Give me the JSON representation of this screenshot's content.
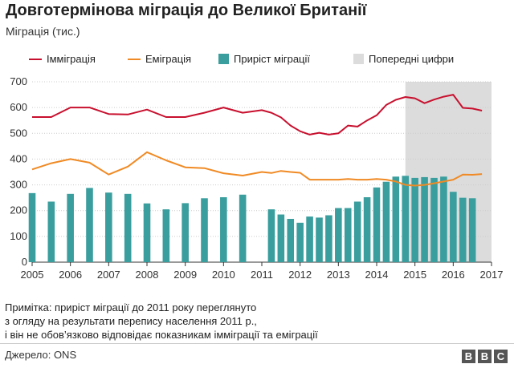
{
  "title": "Довготермінова міграція до Великої Британії",
  "subtitle": "Міграція (тис.)",
  "legend": {
    "immigration": "Імміграція",
    "emigration": "Еміграція",
    "net": "Приріст міграції",
    "provisional": "Попередні цифри"
  },
  "colors": {
    "immigration": "#c8102e",
    "emigration": "#f08a24",
    "net": "#3a9e9e",
    "provisional": "#dcdcdc",
    "grid": "#cccccc"
  },
  "chart_data": {
    "type": "bar",
    "ylim": [
      0,
      700
    ],
    "yticks": [
      0,
      100,
      200,
      300,
      400,
      500,
      600,
      700
    ],
    "xlim": [
      2005,
      2017
    ],
    "xticks": [
      "2005",
      "2006",
      "2007",
      "2008",
      "2009",
      "2010",
      "2011",
      "2012",
      "2013",
      "2014",
      "2015",
      "2016",
      "2017"
    ],
    "provisional_from": 2014.75,
    "series": [
      {
        "name": "Імміграція",
        "type": "line",
        "points": [
          [
            2005.0,
            563
          ],
          [
            2005.5,
            563
          ],
          [
            2006.0,
            600
          ],
          [
            2006.5,
            600
          ],
          [
            2007.0,
            575
          ],
          [
            2007.5,
            573
          ],
          [
            2008.0,
            592
          ],
          [
            2008.5,
            563
          ],
          [
            2009.0,
            563
          ],
          [
            2009.5,
            580
          ],
          [
            2010.0,
            600
          ],
          [
            2010.5,
            580
          ],
          [
            2011.0,
            590
          ],
          [
            2011.25,
            580
          ],
          [
            2011.5,
            562
          ],
          [
            2011.75,
            530
          ],
          [
            2012.0,
            508
          ],
          [
            2012.25,
            495
          ],
          [
            2012.5,
            502
          ],
          [
            2012.75,
            495
          ],
          [
            2013.0,
            500
          ],
          [
            2013.25,
            530
          ],
          [
            2013.5,
            526
          ],
          [
            2013.75,
            550
          ],
          [
            2014.0,
            570
          ],
          [
            2014.25,
            610
          ],
          [
            2014.5,
            630
          ],
          [
            2014.75,
            641
          ],
          [
            2015.0,
            636
          ],
          [
            2015.25,
            617
          ],
          [
            2015.5,
            631
          ],
          [
            2015.75,
            642
          ],
          [
            2016.0,
            650
          ],
          [
            2016.25,
            599
          ],
          [
            2016.5,
            596
          ],
          [
            2016.75,
            588
          ]
        ]
      },
      {
        "name": "Еміграція",
        "type": "line",
        "points": [
          [
            2005.0,
            360
          ],
          [
            2005.5,
            384
          ],
          [
            2006.0,
            400
          ],
          [
            2006.5,
            386
          ],
          [
            2007.0,
            340
          ],
          [
            2007.5,
            371
          ],
          [
            2008.0,
            427
          ],
          [
            2008.5,
            395
          ],
          [
            2009.0,
            368
          ],
          [
            2009.5,
            365
          ],
          [
            2010.0,
            345
          ],
          [
            2010.5,
            336
          ],
          [
            2011.0,
            350
          ],
          [
            2011.25,
            346
          ],
          [
            2011.5,
            354
          ],
          [
            2011.75,
            350
          ],
          [
            2012.0,
            347
          ],
          [
            2012.25,
            320
          ],
          [
            2012.5,
            320
          ],
          [
            2012.75,
            320
          ],
          [
            2013.0,
            320
          ],
          [
            2013.25,
            323
          ],
          [
            2013.5,
            320
          ],
          [
            2013.75,
            320
          ],
          [
            2014.0,
            323
          ],
          [
            2014.25,
            320
          ],
          [
            2014.5,
            313
          ],
          [
            2014.75,
            300
          ],
          [
            2015.0,
            297
          ],
          [
            2015.25,
            300
          ],
          [
            2015.5,
            306
          ],
          [
            2015.75,
            313
          ],
          [
            2016.0,
            320
          ],
          [
            2016.25,
            340
          ],
          [
            2016.5,
            339
          ],
          [
            2016.75,
            342
          ]
        ]
      },
      {
        "name": "Приріст міграції",
        "type": "bar",
        "points": [
          [
            2005.0,
            268
          ],
          [
            2005.5,
            235
          ],
          [
            2006.0,
            265
          ],
          [
            2006.5,
            288
          ],
          [
            2007.0,
            270
          ],
          [
            2007.5,
            265
          ],
          [
            2008.0,
            228
          ],
          [
            2008.5,
            205
          ],
          [
            2009.0,
            229
          ],
          [
            2009.5,
            248
          ],
          [
            2010.0,
            252
          ],
          [
            2010.5,
            262
          ],
          [
            2011.25,
            205
          ],
          [
            2011.5,
            185
          ],
          [
            2011.75,
            168
          ],
          [
            2012.0,
            153
          ],
          [
            2012.25,
            177
          ],
          [
            2012.5,
            173
          ],
          [
            2012.75,
            182
          ],
          [
            2013.0,
            210
          ],
          [
            2013.25,
            210
          ],
          [
            2013.5,
            235
          ],
          [
            2013.75,
            252
          ],
          [
            2014.0,
            290
          ],
          [
            2014.25,
            312
          ],
          [
            2014.5,
            332
          ],
          [
            2014.75,
            335
          ],
          [
            2015.0,
            327
          ],
          [
            2015.25,
            330
          ],
          [
            2015.5,
            327
          ],
          [
            2015.75,
            332
          ],
          [
            2016.0,
            273
          ],
          [
            2016.25,
            250
          ],
          [
            2016.5,
            248
          ]
        ]
      }
    ]
  },
  "note_lines": [
    "Примітка: приріст міграції до 2011 року переглянуто",
    "з огляду на результати перепису населення 2011 р.,",
    "і він не обов’язково відповідає показникам імміграції та еміграції"
  ],
  "source": "Джерело: ONS",
  "logo": [
    "B",
    "B",
    "C"
  ]
}
